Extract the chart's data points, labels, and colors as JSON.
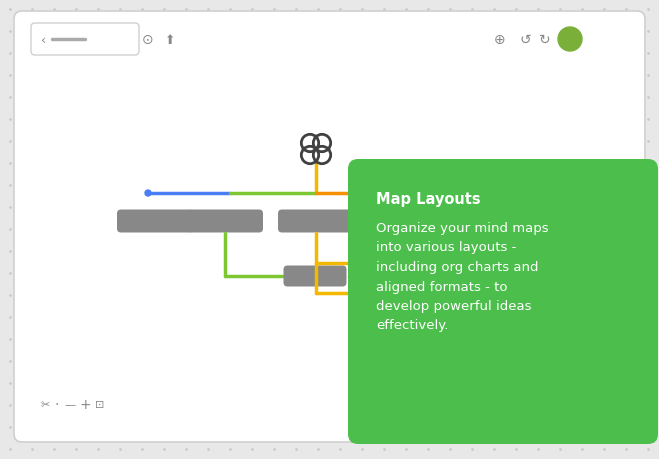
{
  "bg_color": "#e8e8e8",
  "card_bg": "#ffffff",
  "green_color": "#4cbe4c",
  "title_text": "Map Layouts",
  "body_text": "Organize your mind maps\ninto various layouts -\nincluding org charts and\naligned formats - to\ndevelop powerful ideas\neffectively.",
  "blue_color": "#4a7ef5",
  "lime_color": "#7dc832",
  "yellow_color": "#f5b800",
  "orange_color": "#f59000",
  "purple_color": "#a070d0",
  "node_color": "#888888",
  "dot_color": "#f5a000",
  "icon_color": "#404040"
}
